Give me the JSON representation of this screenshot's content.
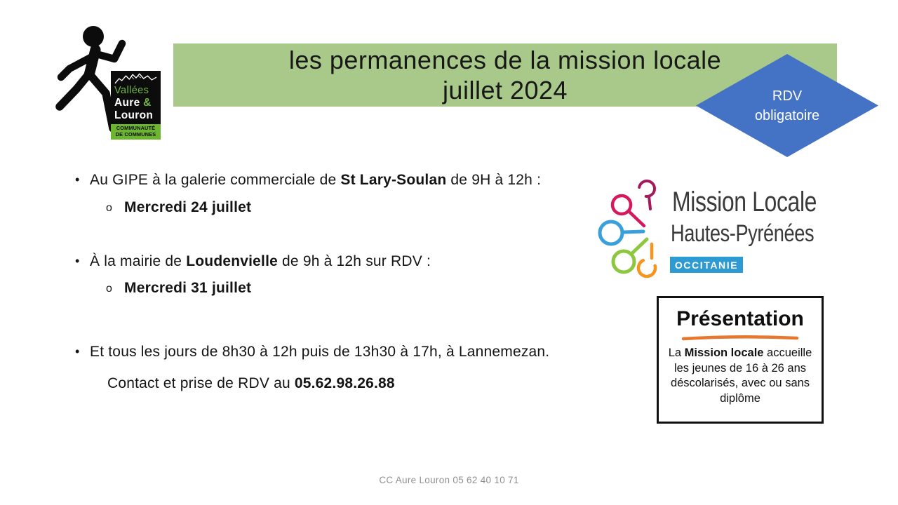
{
  "header": {
    "title_line1": "les permanences de la mission locale",
    "title_line2": "juillet 2024",
    "diamond": {
      "line1": "RDV",
      "line2": "obligatoire"
    }
  },
  "logos": {
    "cc_aure_louron": {
      "name_line1": "Vallées",
      "name_line2": "Aure",
      "ampersand": "&",
      "name_line3": "Louron",
      "strip_line1": "COMMUNAUTÉ",
      "strip_line2": "DE COMMUNES"
    },
    "mission_locale": {
      "line1": "Mission Locale",
      "line2": "Hautes-Pyrénées",
      "badge": "OCCITANIE"
    }
  },
  "content": {
    "bullet_marker": "•",
    "sub_marker": "o",
    "bullet1": {
      "segments": [
        {
          "t": "Au GIPE à la galerie commerciale de "
        },
        {
          "t": "St Lary-Soulan",
          "b": true
        },
        {
          "t": " de 9H à 12h :"
        }
      ]
    },
    "sub1": {
      "segments": [
        {
          "t": "Mercredi 24 juillet",
          "b": true
        }
      ]
    },
    "bullet2": {
      "segments": [
        {
          "t": "À la mairie de "
        },
        {
          "t": "Loudenvielle",
          "b": true
        },
        {
          "t": " de 9h à 12h sur RDV :"
        }
      ]
    },
    "sub2": {
      "segments": [
        {
          "t": "Mercredi 31 juillet",
          "b": true
        }
      ]
    },
    "bullet3": {
      "segments": [
        {
          "t": "Et tous les jours de 8h30 à 12h puis de 13h30 à 17h, à Lannemezan."
        }
      ]
    },
    "contact": {
      "segments": [
        {
          "t": "Contact et prise de RDV au "
        },
        {
          "t": "05.62.98.26.88",
          "b": true
        }
      ]
    }
  },
  "presentation": {
    "title": "Présentation",
    "body_segments": [
      {
        "t": "La "
      },
      {
        "t": "Mission locale",
        "b": true
      },
      {
        "t": " accueille les jeunes de 16 à 26 ans déscolarisés, avec ou sans diplôme"
      }
    ]
  },
  "footer": {
    "text": "CC Aure Louron 05 62 40 10 71"
  },
  "colors": {
    "banner_green": "#a8c98a",
    "diamond_blue": "#4472c4",
    "occitanie_blue": "#2e9ad2",
    "logo_text_green": "#72b742",
    "logo_strip_green": "#6db52e",
    "orange_underline": "#e8772e",
    "ml_maroon": "#a3195b",
    "ml_pink": "#d6195e",
    "ml_blue": "#3aa0dc",
    "ml_green": "#8dc63f",
    "ml_orange": "#f7941e",
    "pictogram_black": "#0c0c0c"
  }
}
